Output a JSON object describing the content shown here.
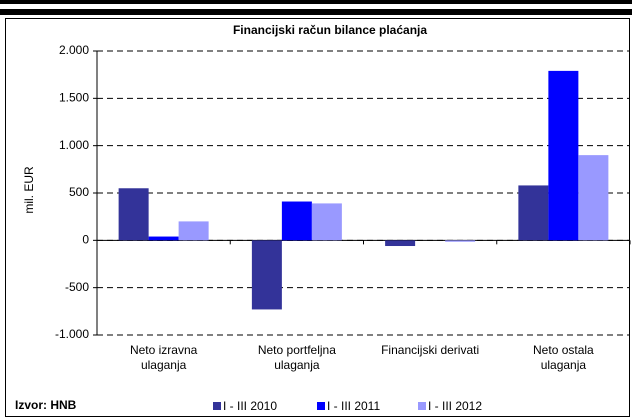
{
  "chart_data": {
    "type": "bar",
    "title": "Financijski račun bilance plaćanja",
    "y_label": "mil. EUR",
    "source": "Izvor: HNB",
    "categories": [
      "Neto izravna\nulaganja",
      "Neto portfeljna\nulaganja",
      "Financijski derivati",
      "Neto ostala\nulaganja"
    ],
    "series": [
      {
        "name": "I - III 2010",
        "color": "#333399",
        "values": [
          550,
          -730,
          -60,
          580
        ]
      },
      {
        "name": "I - III 2011",
        "color": "#0000ff",
        "values": [
          40,
          410,
          0,
          1790
        ]
      },
      {
        "name": "I - III 2012",
        "color": "#9999ff",
        "values": [
          200,
          390,
          -15,
          900
        ]
      }
    ],
    "ylim": [
      -1000,
      2000
    ],
    "yticks": [
      {
        "value": -1000,
        "label": "-1.000"
      },
      -500,
      0,
      500,
      {
        "value": 1000,
        "label": "1.000"
      },
      {
        "value": 1500,
        "label": "1.500"
      },
      {
        "value": 2000,
        "label": "2.000"
      }
    ],
    "grid": true,
    "legend": "bottom"
  }
}
